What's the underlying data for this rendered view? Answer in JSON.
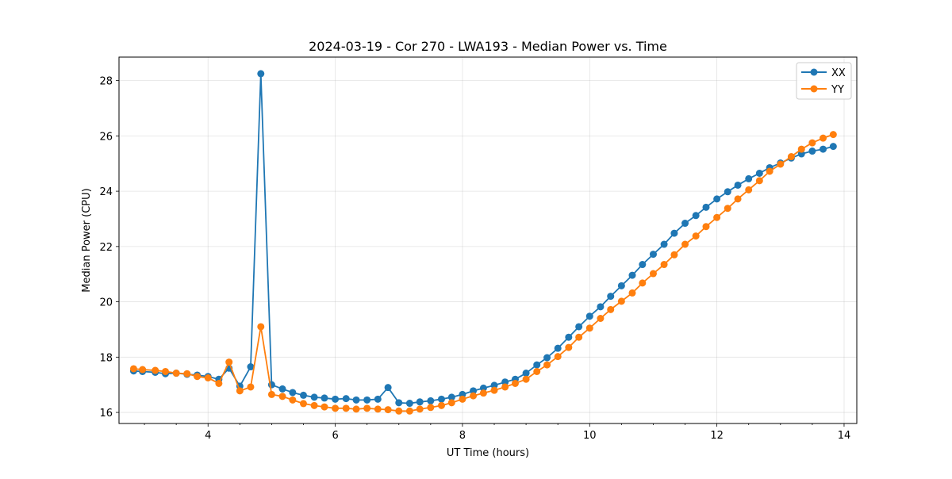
{
  "chart_data": {
    "type": "line",
    "title": "2024-03-19 - Cor 270 - LWA193 - Median Power vs. Time",
    "xlabel": "UT Time (hours)",
    "ylabel": "Median Power (CPU)",
    "xlim": [
      2.6,
      14.2
    ],
    "ylim": [
      15.6,
      28.85
    ],
    "grid": true,
    "legend_position": "top-right",
    "x_major_ticks": [
      4,
      6,
      8,
      10,
      12,
      14
    ],
    "x_tick_labels": [
      "4",
      "6",
      "8",
      "10",
      "12",
      "14"
    ],
    "x_minor_step": 0.5,
    "y_major_ticks": [
      16,
      18,
      20,
      22,
      24,
      26,
      28
    ],
    "y_tick_labels": [
      "16",
      "18",
      "20",
      "22",
      "24",
      "26",
      "28"
    ],
    "colors": {
      "XX": "#1f77b4",
      "YY": "#ff7f0e"
    },
    "x": [
      2.83,
      2.97,
      3.17,
      3.33,
      3.5,
      3.67,
      3.83,
      4.0,
      4.17,
      4.33,
      4.5,
      4.67,
      4.83,
      5.0,
      5.17,
      5.33,
      5.5,
      5.67,
      5.83,
      6.0,
      6.17,
      6.33,
      6.5,
      6.67,
      6.83,
      7.0,
      7.17,
      7.33,
      7.5,
      7.67,
      7.83,
      8.0,
      8.17,
      8.33,
      8.5,
      8.67,
      8.83,
      9.0,
      9.17,
      9.33,
      9.5,
      9.67,
      9.83,
      10.0,
      10.17,
      10.33,
      10.5,
      10.67,
      10.83,
      11.0,
      11.17,
      11.33,
      11.5,
      11.67,
      11.83,
      12.0,
      12.17,
      12.33,
      12.5,
      12.67,
      12.83,
      13.0,
      13.17,
      13.33,
      13.5,
      13.67,
      13.83
    ],
    "series": [
      {
        "name": "XX",
        "values": [
          17.5,
          17.48,
          17.45,
          17.4,
          17.42,
          17.38,
          17.35,
          17.3,
          17.2,
          17.6,
          16.95,
          17.65,
          28.25,
          17.0,
          16.85,
          16.72,
          16.62,
          16.55,
          16.52,
          16.48,
          16.5,
          16.45,
          16.45,
          16.48,
          16.9,
          16.35,
          16.33,
          16.38,
          16.42,
          16.48,
          16.55,
          16.65,
          16.78,
          16.88,
          16.98,
          17.1,
          17.2,
          17.42,
          17.72,
          17.98,
          18.32,
          18.72,
          19.1,
          19.48,
          19.82,
          20.2,
          20.58,
          20.96,
          21.35,
          21.72,
          22.08,
          22.48,
          22.84,
          23.12,
          23.42,
          23.72,
          23.98,
          24.22,
          24.45,
          24.65,
          24.85,
          25.02,
          25.2,
          25.35,
          25.45,
          25.52,
          25.62
        ]
      },
      {
        "name": "YY",
        "values": [
          17.58,
          17.55,
          17.52,
          17.48,
          17.42,
          17.4,
          17.3,
          17.25,
          17.05,
          17.82,
          16.78,
          16.92,
          19.1,
          16.65,
          16.58,
          16.45,
          16.32,
          16.25,
          16.2,
          16.15,
          16.15,
          16.12,
          16.15,
          16.12,
          16.1,
          16.05,
          16.05,
          16.12,
          16.18,
          16.25,
          16.35,
          16.48,
          16.6,
          16.7,
          16.8,
          16.92,
          17.05,
          17.2,
          17.48,
          17.72,
          18.02,
          18.35,
          18.72,
          19.05,
          19.4,
          19.72,
          20.02,
          20.32,
          20.68,
          21.02,
          21.35,
          21.7,
          22.08,
          22.38,
          22.72,
          23.05,
          23.38,
          23.72,
          24.05,
          24.38,
          24.72,
          24.98,
          25.25,
          25.52,
          25.75,
          25.92,
          26.05
        ]
      }
    ]
  }
}
